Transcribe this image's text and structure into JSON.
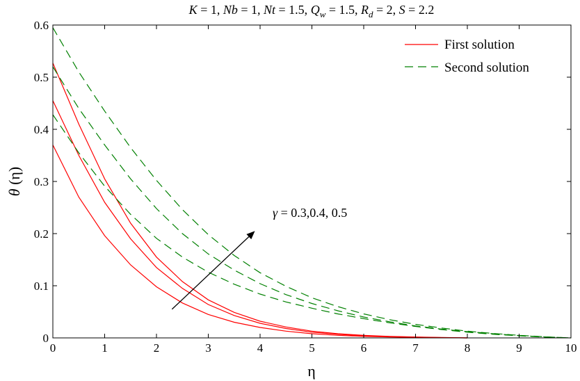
{
  "chart_data": {
    "type": "line",
    "title": "K = 1, Nb = 1, Nt = 1.5, Q_w = 1.5, R_d = 2, S = 2.2",
    "title_parts": {
      "p1": "K",
      "p2": " = 1, ",
      "p3": "Nb",
      "p4": " = 1, ",
      "p5": "Nt",
      "p6": " = 1.5, ",
      "p7": "Q",
      "p7sub": "w",
      "p8": " = 1.5, ",
      "p9": "R",
      "p9sub": "d",
      "p10": " = 2, ",
      "p11": "S",
      "p12": " = 2.2"
    },
    "xlabel": "η",
    "ylabel": "θ (η)",
    "ylabel_symbol": "θ",
    "ylabel_arg": " (η)",
    "xlim": [
      0,
      10
    ],
    "ylim": [
      0,
      0.6
    ],
    "xticks": [
      "0",
      "1",
      "2",
      "3",
      "4",
      "5",
      "6",
      "7",
      "8",
      "9",
      "10"
    ],
    "yticks": [
      "0",
      "0.1",
      "0.2",
      "0.3",
      "0.4",
      "0.5",
      "0.6"
    ],
    "grid": false,
    "legend_position": "top-right",
    "legend": [
      {
        "label": "First solution",
        "color": "#ff0000",
        "dash": "solid"
      },
      {
        "label": "Second solution",
        "color": "#008000",
        "dash": "dashed"
      }
    ],
    "annotation": {
      "symbol": "γ",
      "text": " = 0.3,0.4, 0.5",
      "arrow_from": [
        2.3,
        0.055
      ],
      "arrow_to": [
        3.9,
        0.205
      ]
    },
    "series": [
      {
        "label": "First solution",
        "color": "#ff0000",
        "dash": "solid",
        "x": [
          0,
          0.5,
          1,
          1.5,
          2,
          2.5,
          3,
          3.5,
          4,
          4.5,
          5,
          5.5,
          6,
          6.5,
          7,
          7.5,
          8
        ],
        "y": [
          0.37,
          0.27,
          0.196,
          0.14,
          0.098,
          0.067,
          0.045,
          0.03,
          0.02,
          0.013,
          0.008,
          0.005,
          0.003,
          0.0018,
          0.001,
          0.0004,
          0.0
        ]
      },
      {
        "label": "First solution",
        "color": "#ff0000",
        "dash": "solid",
        "x": [
          0,
          0.5,
          1,
          1.5,
          2,
          2.5,
          3,
          3.5,
          4,
          4.5,
          5,
          5.5,
          6,
          6.5,
          7,
          7.5,
          8
        ],
        "y": [
          0.455,
          0.35,
          0.26,
          0.19,
          0.135,
          0.095,
          0.064,
          0.043,
          0.028,
          0.018,
          0.011,
          0.007,
          0.004,
          0.0025,
          0.0014,
          0.0006,
          0.0
        ]
      },
      {
        "label": "First solution",
        "color": "#ff0000",
        "dash": "solid",
        "x": [
          0,
          0.5,
          1,
          1.5,
          2,
          2.5,
          3,
          3.5,
          4,
          4.5,
          5,
          5.5,
          6,
          6.5,
          7,
          7.5,
          8
        ],
        "y": [
          0.527,
          0.41,
          0.305,
          0.22,
          0.155,
          0.108,
          0.073,
          0.049,
          0.032,
          0.021,
          0.013,
          0.008,
          0.005,
          0.003,
          0.0017,
          0.0008,
          0.0
        ]
      },
      {
        "label": "Second solution",
        "color": "#008000",
        "dash": "dashed",
        "x": [
          0,
          0.5,
          1,
          1.5,
          2,
          2.5,
          3,
          3.5,
          4,
          4.5,
          5,
          5.5,
          6,
          6.5,
          7,
          7.5,
          8,
          8.5,
          9,
          9.5,
          10
        ],
        "y": [
          0.428,
          0.355,
          0.291,
          0.237,
          0.191,
          0.155,
          0.126,
          0.103,
          0.084,
          0.069,
          0.057,
          0.046,
          0.037,
          0.029,
          0.022,
          0.016,
          0.011,
          0.007,
          0.004,
          0.0015,
          0.0
        ]
      },
      {
        "label": "Second solution",
        "color": "#008000",
        "dash": "dashed",
        "x": [
          0,
          0.5,
          1,
          1.5,
          2,
          2.5,
          3,
          3.5,
          4,
          4.5,
          5,
          5.5,
          6,
          6.5,
          7,
          7.5,
          8,
          8.5,
          9,
          9.5,
          10
        ],
        "y": [
          0.52,
          0.44,
          0.37,
          0.305,
          0.248,
          0.2,
          0.161,
          0.13,
          0.104,
          0.083,
          0.066,
          0.052,
          0.04,
          0.031,
          0.023,
          0.017,
          0.012,
          0.008,
          0.0045,
          0.0018,
          0.0
        ]
      },
      {
        "label": "Second solution",
        "color": "#008000",
        "dash": "dashed",
        "x": [
          0,
          0.5,
          1,
          1.5,
          2,
          2.5,
          3,
          3.5,
          4,
          4.5,
          5,
          5.5,
          6,
          6.5,
          7,
          7.5,
          8,
          8.5,
          9,
          9.5,
          10
        ],
        "y": [
          0.595,
          0.51,
          0.435,
          0.365,
          0.302,
          0.246,
          0.198,
          0.158,
          0.125,
          0.099,
          0.077,
          0.06,
          0.046,
          0.035,
          0.026,
          0.019,
          0.013,
          0.0085,
          0.005,
          0.002,
          0.0
        ]
      }
    ]
  }
}
